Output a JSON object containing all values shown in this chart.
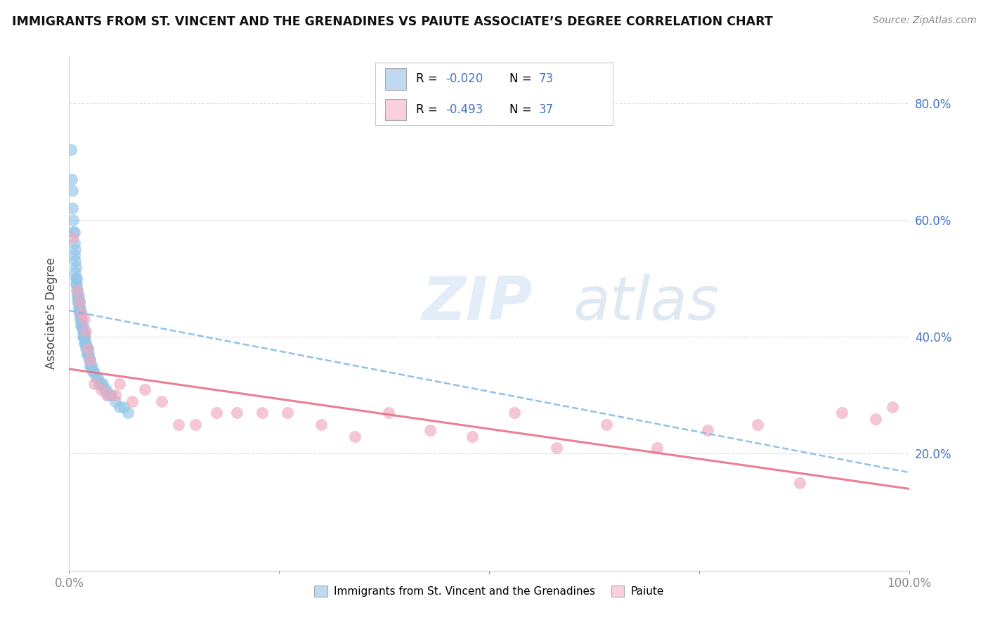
{
  "title": "IMMIGRANTS FROM ST. VINCENT AND THE GRENADINES VS PAIUTE ASSOCIATE’S DEGREE CORRELATION CHART",
  "source": "Source: ZipAtlas.com",
  "ylabel": "Associate's Degree",
  "xmin": 0.0,
  "xmax": 1.0,
  "ymin": 0.0,
  "ymax": 0.88,
  "ytick_labels": [
    "20.0%",
    "40.0%",
    "60.0%",
    "80.0%"
  ],
  "ytick_vals": [
    0.2,
    0.4,
    0.6,
    0.8
  ],
  "legend_label1": "Immigrants from St. Vincent and the Grenadines",
  "legend_label2": "Paiute",
  "color_blue": "#92C5E8",
  "color_blue_fill": "#BFD9F0",
  "color_pink": "#F0A8BE",
  "color_pink_fill": "#F8D0DE",
  "color_blue_line": "#7EB6E8",
  "color_pink_line": "#E8708A",
  "color_title": "#111111",
  "color_axis_label": "#444444",
  "color_grid": "#DDDDDD",
  "color_tick_blue": "#4472C4",
  "watermark_zip": "ZIP",
  "watermark_atlas": "atlas",
  "blue_x": [
    0.002,
    0.003,
    0.004,
    0.004,
    0.005,
    0.005,
    0.006,
    0.006,
    0.006,
    0.007,
    0.007,
    0.007,
    0.008,
    0.008,
    0.008,
    0.009,
    0.009,
    0.009,
    0.01,
    0.01,
    0.01,
    0.01,
    0.011,
    0.011,
    0.011,
    0.012,
    0.012,
    0.012,
    0.013,
    0.013,
    0.013,
    0.014,
    0.014,
    0.014,
    0.015,
    0.015,
    0.016,
    0.016,
    0.016,
    0.017,
    0.017,
    0.018,
    0.018,
    0.019,
    0.019,
    0.02,
    0.02,
    0.021,
    0.021,
    0.022,
    0.022,
    0.023,
    0.024,
    0.025,
    0.025,
    0.026,
    0.027,
    0.028,
    0.03,
    0.032,
    0.034,
    0.036,
    0.038,
    0.04,
    0.042,
    0.044,
    0.046,
    0.048,
    0.05,
    0.055,
    0.06,
    0.065,
    0.07
  ],
  "blue_y": [
    0.72,
    0.67,
    0.65,
    0.62,
    0.6,
    0.58,
    0.58,
    0.56,
    0.54,
    0.55,
    0.53,
    0.51,
    0.52,
    0.5,
    0.49,
    0.5,
    0.49,
    0.48,
    0.48,
    0.47,
    0.47,
    0.46,
    0.47,
    0.46,
    0.45,
    0.46,
    0.45,
    0.44,
    0.45,
    0.44,
    0.43,
    0.44,
    0.43,
    0.42,
    0.43,
    0.42,
    0.42,
    0.41,
    0.4,
    0.41,
    0.4,
    0.4,
    0.39,
    0.4,
    0.39,
    0.39,
    0.38,
    0.38,
    0.37,
    0.38,
    0.37,
    0.37,
    0.36,
    0.36,
    0.35,
    0.35,
    0.35,
    0.34,
    0.34,
    0.33,
    0.33,
    0.32,
    0.32,
    0.32,
    0.31,
    0.31,
    0.3,
    0.3,
    0.3,
    0.29,
    0.28,
    0.28,
    0.27
  ],
  "pink_x": [
    0.005,
    0.01,
    0.012,
    0.015,
    0.018,
    0.02,
    0.022,
    0.025,
    0.03,
    0.038,
    0.045,
    0.055,
    0.06,
    0.075,
    0.09,
    0.11,
    0.13,
    0.15,
    0.175,
    0.2,
    0.23,
    0.26,
    0.3,
    0.34,
    0.38,
    0.43,
    0.48,
    0.53,
    0.58,
    0.64,
    0.7,
    0.76,
    0.82,
    0.87,
    0.92,
    0.96,
    0.98
  ],
  "pink_y": [
    0.57,
    0.48,
    0.46,
    0.44,
    0.43,
    0.41,
    0.38,
    0.36,
    0.32,
    0.31,
    0.3,
    0.3,
    0.32,
    0.29,
    0.31,
    0.29,
    0.25,
    0.25,
    0.27,
    0.27,
    0.27,
    0.27,
    0.25,
    0.23,
    0.27,
    0.24,
    0.23,
    0.27,
    0.21,
    0.25,
    0.21,
    0.24,
    0.25,
    0.15,
    0.27,
    0.26,
    0.28
  ],
  "blue_line_x0": 0.0,
  "blue_line_y0": 0.445,
  "blue_line_x1": 1.0,
  "blue_line_y1": 0.168,
  "pink_line_x0": 0.0,
  "pink_line_y0": 0.345,
  "pink_line_x1": 1.0,
  "pink_line_y1": 0.14
}
